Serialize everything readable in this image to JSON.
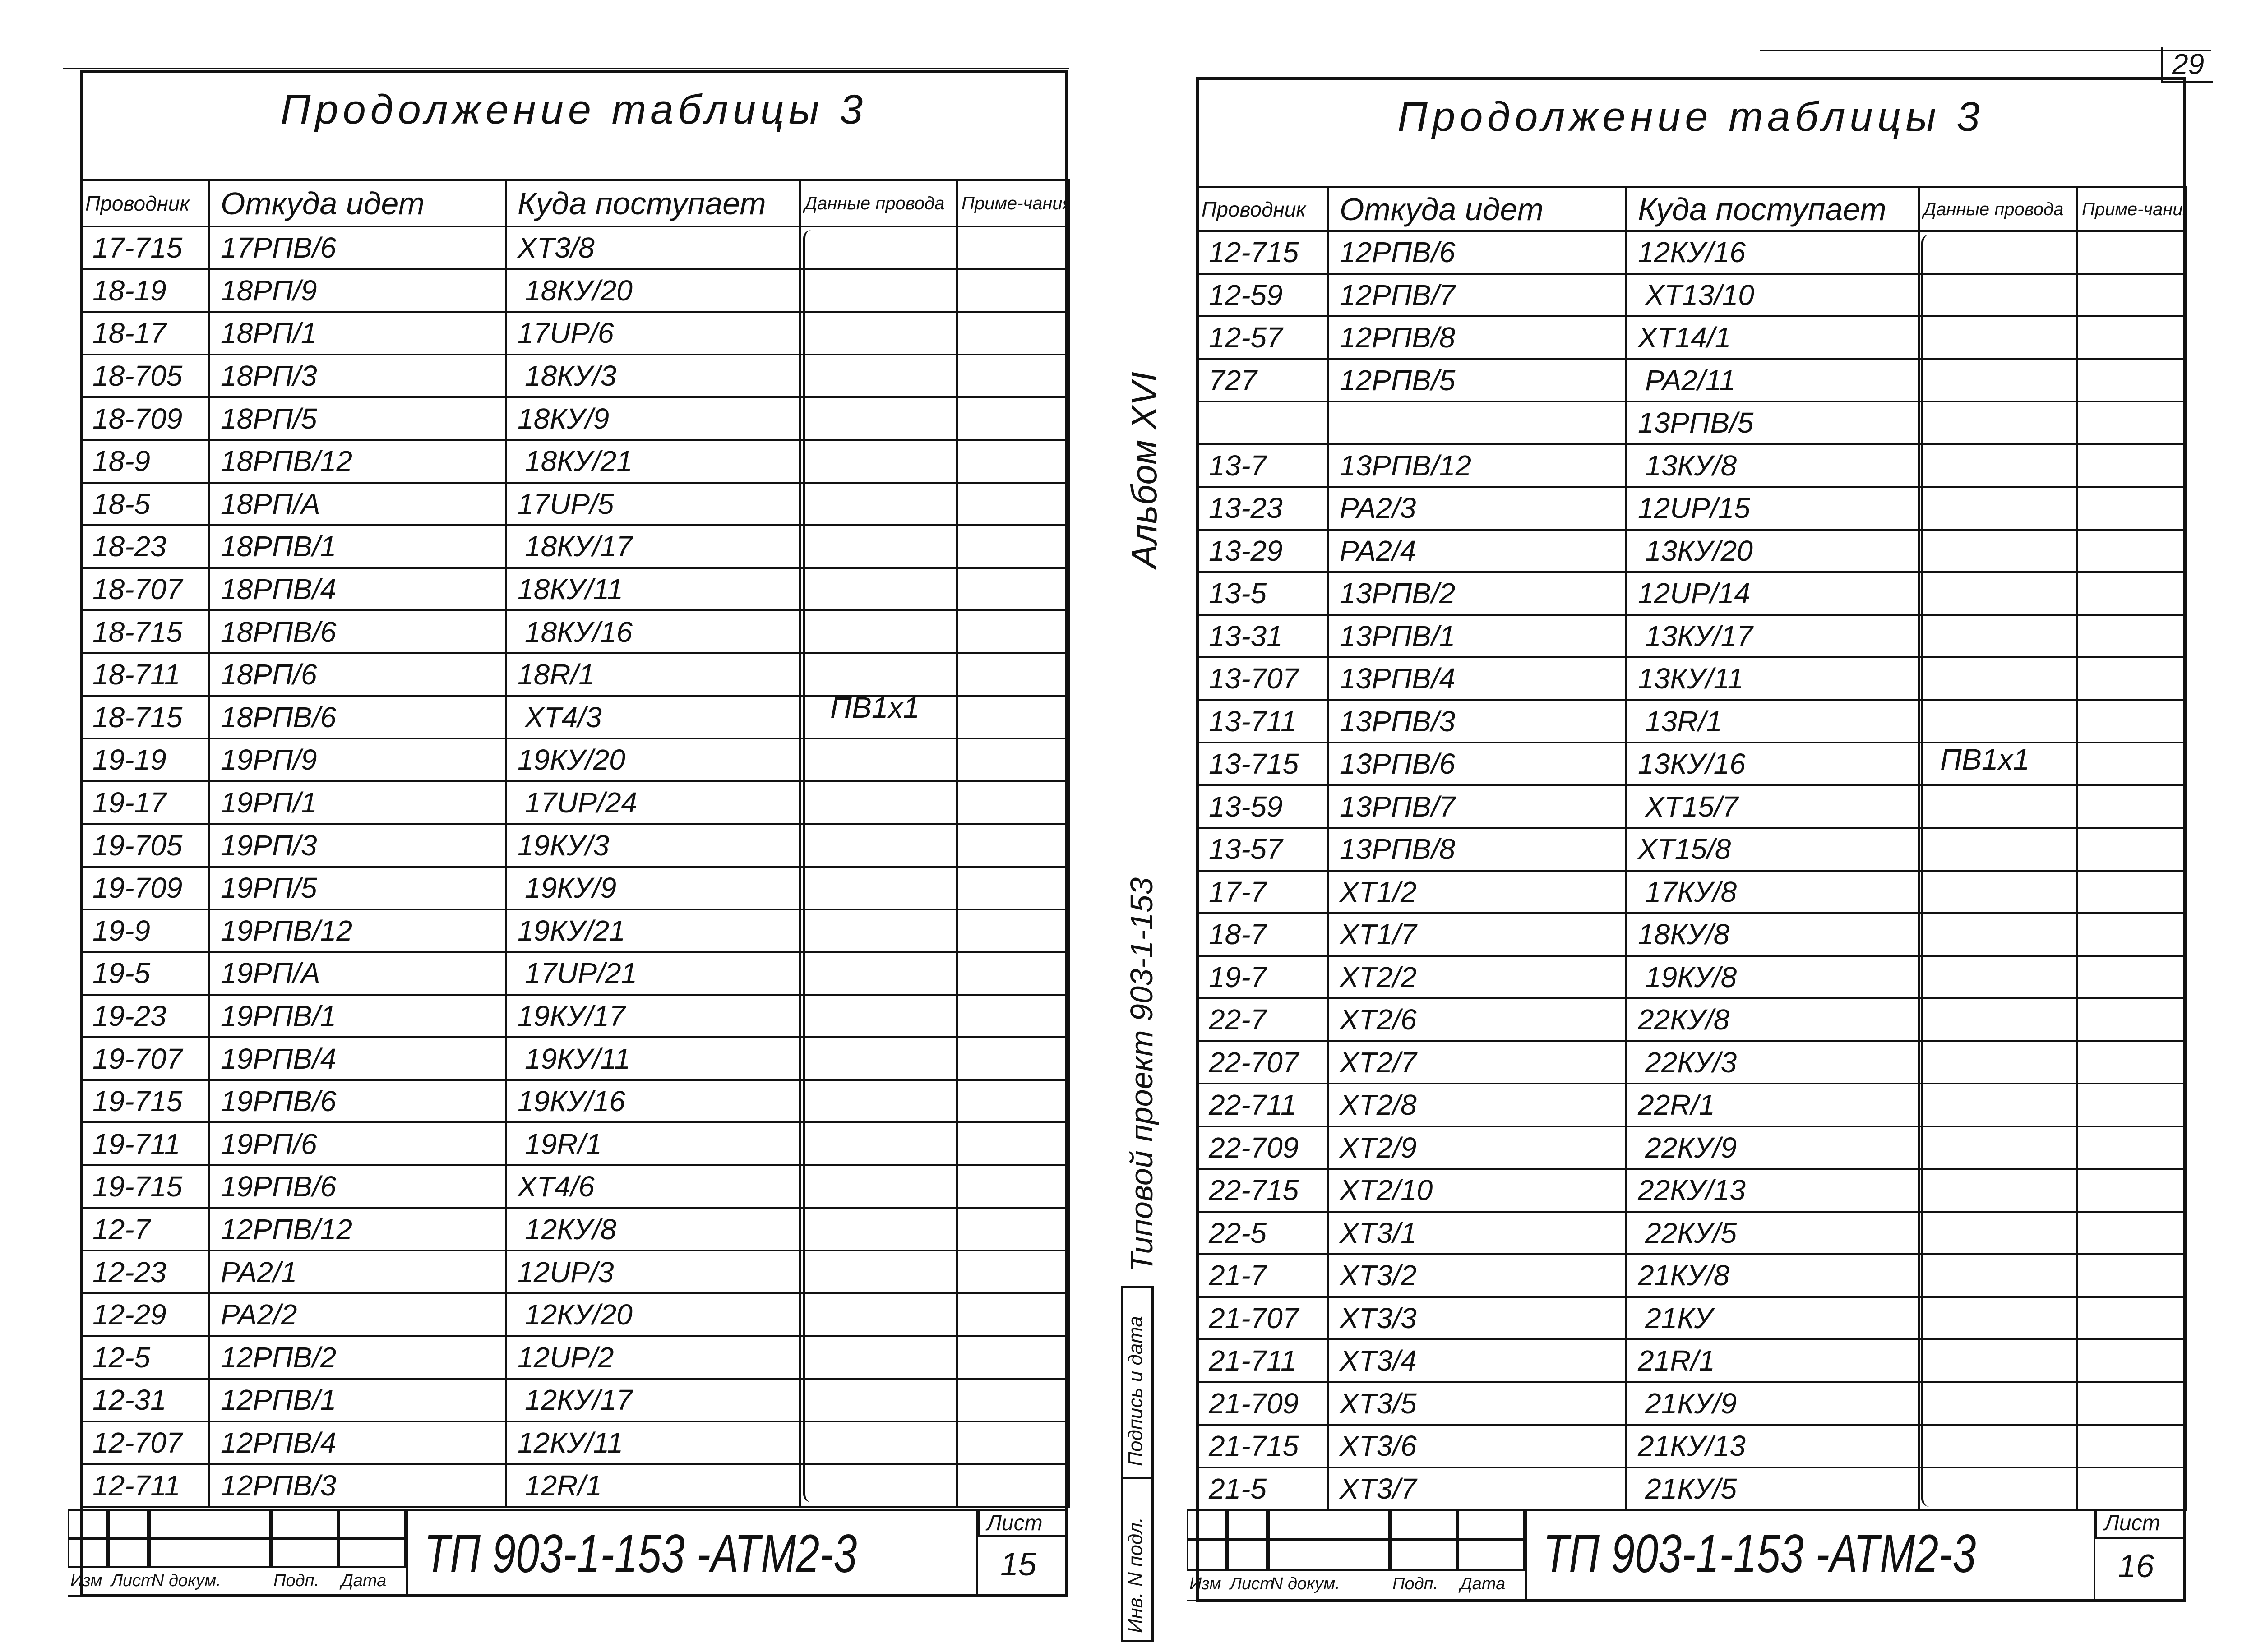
{
  "page_number": "29",
  "columns": [
    "Проводник",
    "Откуда идет",
    "Куда поступает",
    "Данные провода",
    "Приме-чания"
  ],
  "left_sheet": {
    "title": "Продолжение таблицы 3",
    "wire_spec": "ПВ1х1",
    "rows": [
      [
        "17-715",
        "17РПВ/6",
        "ХТ3/8"
      ],
      [
        "18-19",
        "18РП/9",
        "18КУ/20"
      ],
      [
        "18-17",
        "18РП/1",
        "17UР/6"
      ],
      [
        "18-705",
        "18РП/3",
        "18КУ/3"
      ],
      [
        "18-709",
        "18РП/5",
        "18КУ/9"
      ],
      [
        "18-9",
        "18РПВ/12",
        "18КУ/21"
      ],
      [
        "18-5",
        "18РП/А",
        "17UР/5"
      ],
      [
        "18-23",
        "18РПВ/1",
        "18КУ/17"
      ],
      [
        "18-707",
        "18РПВ/4",
        "18КУ/11"
      ],
      [
        "18-715",
        "18РПВ/6",
        "18КУ/16"
      ],
      [
        "18-711",
        "18РП/6",
        "18R/1"
      ],
      [
        "18-715",
        "18РПВ/6",
        "ХТ4/3"
      ],
      [
        "19-19",
        "19РП/9",
        "19КУ/20"
      ],
      [
        "19-17",
        "19РП/1",
        "17UР/24"
      ],
      [
        "19-705",
        "19РП/3",
        "19КУ/3"
      ],
      [
        "19-709",
        "19РП/5",
        "19КУ/9"
      ],
      [
        "19-9",
        "19РПВ/12",
        "19КУ/21"
      ],
      [
        "19-5",
        "19РП/А",
        "17UР/21"
      ],
      [
        "19-23",
        "19РПВ/1",
        "19КУ/17"
      ],
      [
        "19-707",
        "19РПВ/4",
        "19КУ/11"
      ],
      [
        "19-715",
        "19РПВ/6",
        "19КУ/16"
      ],
      [
        "19-711",
        "19РП/6",
        "19R/1"
      ],
      [
        "19-715",
        "19РПВ/6",
        "ХТ4/6"
      ],
      [
        "12-7",
        "12РПВ/12",
        "12КУ/8"
      ],
      [
        "12-23",
        "РА2/1",
        "12UР/3"
      ],
      [
        "12-29",
        "РА2/2",
        "12КУ/20"
      ],
      [
        "12-5",
        "12РПВ/2",
        "12UР/2"
      ],
      [
        "12-31",
        "12РПВ/1",
        "12КУ/17"
      ],
      [
        "12-707",
        "12РПВ/4",
        "12КУ/11"
      ],
      [
        "12-711",
        "12РПВ/3",
        "12R/1"
      ]
    ],
    "stamp": {
      "code": "ТП 903-1-153  -АТМ2-3",
      "sheet_label": "Лист",
      "sheet_number": "15",
      "labels": [
        "Изм",
        "Лист",
        "N докум.",
        "Подп.",
        "Дата"
      ]
    }
  },
  "right_sheet": {
    "title": "Продолжение таблицы 3",
    "wire_spec": "ПВ1х1",
    "rows": [
      [
        "12-715",
        "12РПВ/6",
        "12КУ/16"
      ],
      [
        "12-59",
        "12РПВ/7",
        "ХТ13/10"
      ],
      [
        "12-57",
        "12РПВ/8",
        "ХТ14/1"
      ],
      [
        "727",
        "12РПВ/5",
        "РА2/11"
      ],
      [
        "",
        "",
        "13РПВ/5"
      ],
      [
        "13-7",
        "13РПВ/12",
        "13КУ/8"
      ],
      [
        "13-23",
        "РА2/3",
        "12UР/15"
      ],
      [
        "13-29",
        "РА2/4",
        "13КУ/20"
      ],
      [
        "13-5",
        "13РПВ/2",
        "12UР/14"
      ],
      [
        "13-31",
        "13РПВ/1",
        "13КУ/17"
      ],
      [
        "13-707",
        "13РПВ/4",
        "13КУ/11"
      ],
      [
        "13-711",
        "13РПВ/3",
        "13R/1"
      ],
      [
        "13-715",
        "13РПВ/6",
        "13КУ/16"
      ],
      [
        "13-59",
        "13РПВ/7",
        "ХТ15/7"
      ],
      [
        "13-57",
        "13РПВ/8",
        "ХТ15/8"
      ],
      [
        "17-7",
        "ХТ1/2",
        "17КУ/8"
      ],
      [
        "18-7",
        "ХТ1/7",
        "18КУ/8"
      ],
      [
        "19-7",
        "ХТ2/2",
        "19КУ/8"
      ],
      [
        "22-7",
        "ХТ2/6",
        "22КУ/8"
      ],
      [
        "22-707",
        "ХТ2/7",
        "22КУ/3"
      ],
      [
        "22-711",
        "ХТ2/8",
        "22R/1"
      ],
      [
        "22-709",
        "ХТ2/9",
        "22КУ/9"
      ],
      [
        "22-715",
        "ХТ2/10",
        "22КУ/13"
      ],
      [
        "22-5",
        "ХТ3/1",
        "22КУ/5"
      ],
      [
        "21-7",
        "ХТ3/2",
        "21КУ/8"
      ],
      [
        "21-707",
        "ХТ3/3",
        "21КУ"
      ],
      [
        "21-711",
        "ХТ3/4",
        "21R/1"
      ],
      [
        "21-709",
        "ХТ3/5",
        "21КУ/9"
      ],
      [
        "21-715",
        "ХТ3/6",
        "21КУ/13"
      ],
      [
        "21-5",
        "ХТ3/7",
        "21КУ/5"
      ]
    ],
    "stamp": {
      "code": "ТП 903-1-153  -АТМ2-3",
      "sheet_label": "Лист",
      "sheet_number": "16",
      "labels": [
        "Изм",
        "Лист",
        "N докум.",
        "Подп.",
        "Дата"
      ]
    }
  },
  "margin": {
    "album": "Альбом XVI",
    "project": "Типовой проект 903-1-153",
    "signature_label": "Подпись и дата",
    "inventory_label": "Инв. N подл."
  }
}
